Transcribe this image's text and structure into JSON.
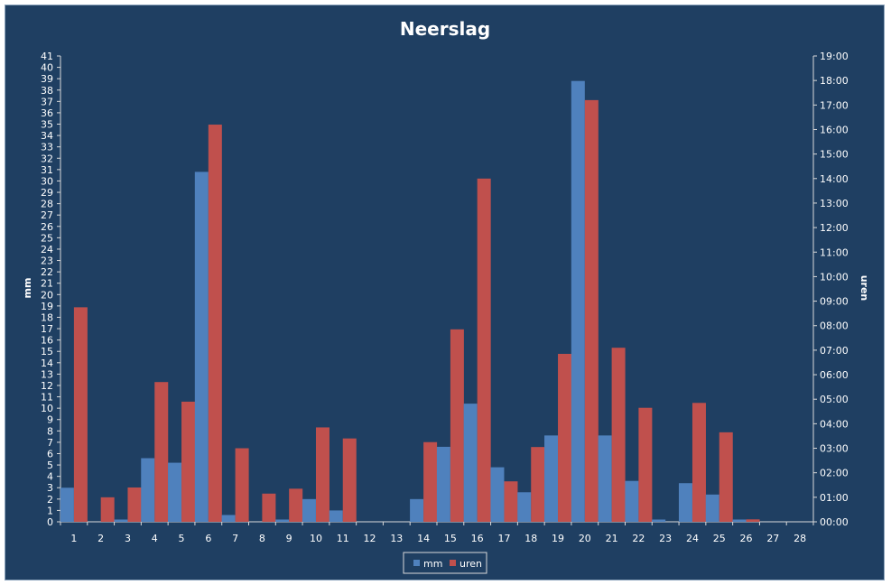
{
  "chart_data": {
    "type": "bar",
    "title": "Neerslag",
    "ylabel_left": "mm",
    "ylabel_right": "uren",
    "categories": [
      "1",
      "2",
      "3",
      "4",
      "5",
      "6",
      "7",
      "8",
      "9",
      "10",
      "11",
      "12",
      "13",
      "14",
      "15",
      "16",
      "17",
      "18",
      "19",
      "20",
      "21",
      "22",
      "23",
      "24",
      "25",
      "26",
      "27",
      "28"
    ],
    "ylim_left": [
      0,
      41
    ],
    "ylim_right_hours": [
      0,
      19
    ],
    "left_ticks": [
      "0",
      "1",
      "2",
      "3",
      "4",
      "5",
      "6",
      "7",
      "8",
      "9",
      "10",
      "11",
      "12",
      "13",
      "14",
      "15",
      "16",
      "17",
      "18",
      "19",
      "20",
      "21",
      "22",
      "23",
      "24",
      "25",
      "26",
      "27",
      "28",
      "29",
      "30",
      "31",
      "32",
      "33",
      "34",
      "35",
      "36",
      "37",
      "38",
      "39",
      "40",
      "41"
    ],
    "right_ticks": [
      "00:00",
      "01:00",
      "02:00",
      "03:00",
      "04:00",
      "05:00",
      "06:00",
      "07:00",
      "08:00",
      "09:00",
      "10:00",
      "11:00",
      "12:00",
      "13:00",
      "14:00",
      "15:00",
      "16:00",
      "17:00",
      "18:00",
      "19:00"
    ],
    "series": [
      {
        "name": "mm",
        "axis": "left",
        "color": "#4f81bd",
        "values": [
          3.0,
          0,
          0.2,
          5.6,
          5.2,
          30.8,
          0.6,
          0,
          0.2,
          2.0,
          1.0,
          0,
          0,
          2.0,
          6.6,
          10.4,
          4.8,
          2.6,
          7.6,
          38.8,
          7.6,
          3.6,
          0.2,
          3.4,
          2.4,
          0.2,
          0,
          0
        ]
      },
      {
        "name": "uren",
        "axis": "right",
        "color": "#c0504d",
        "values": [
          8.75,
          1.0,
          1.4,
          5.7,
          4.9,
          16.2,
          3.0,
          1.15,
          1.35,
          3.85,
          3.4,
          0,
          0,
          3.25,
          7.85,
          14.0,
          1.65,
          3.05,
          6.85,
          17.2,
          7.1,
          4.65,
          0,
          4.85,
          3.65,
          0.1,
          0,
          0
        ]
      }
    ],
    "grid": false,
    "legend_position": "bottom"
  }
}
